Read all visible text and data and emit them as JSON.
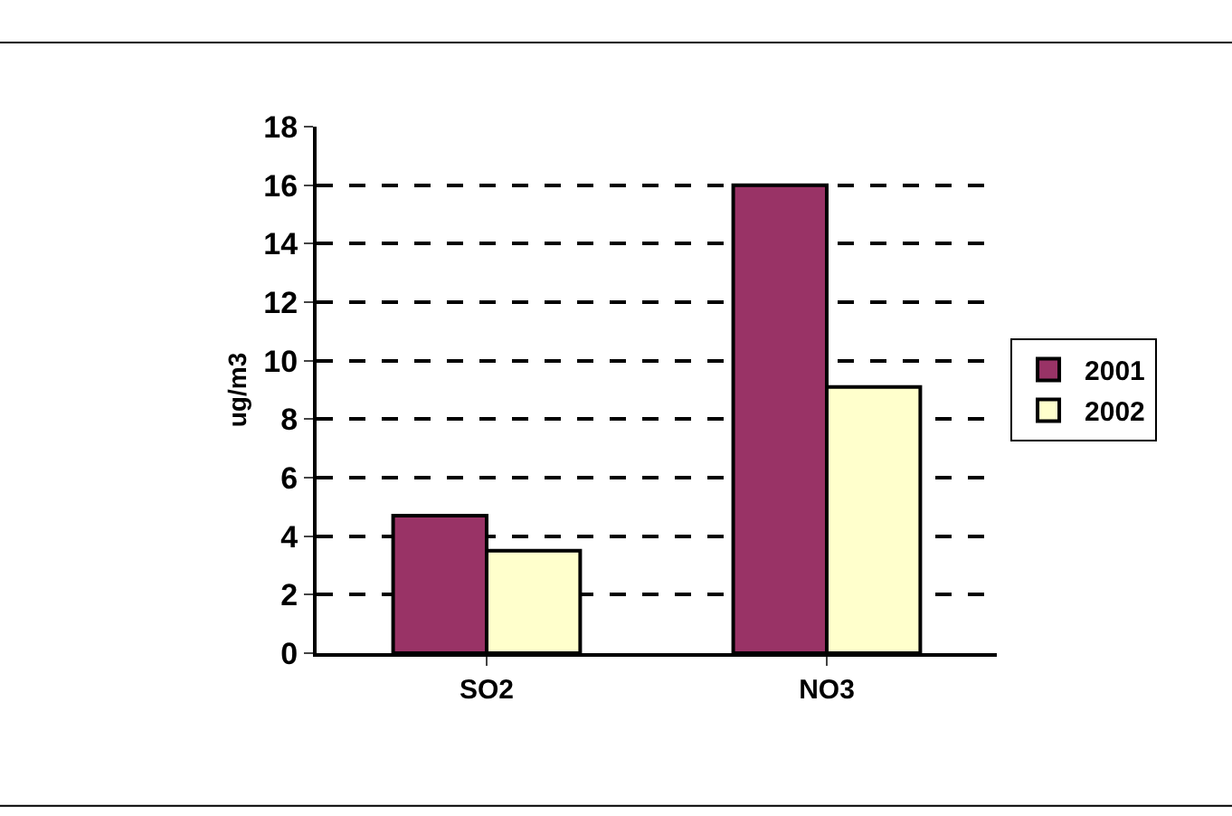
{
  "chart_data": {
    "type": "bar",
    "categories": [
      "SO2",
      "NO3"
    ],
    "series": [
      {
        "name": "2001",
        "color": "#993366",
        "values": [
          4.7,
          16
        ]
      },
      {
        "name": "2002",
        "color": "#ffffcc",
        "values": [
          3.5,
          9.1
        ]
      }
    ],
    "ylabel": "ug/m3",
    "ylim": [
      0,
      18
    ],
    "yticks": [
      0,
      2,
      4,
      6,
      8,
      10,
      12,
      14,
      16,
      18
    ],
    "grid": "y",
    "line_style": "dashed",
    "legend": "right"
  }
}
